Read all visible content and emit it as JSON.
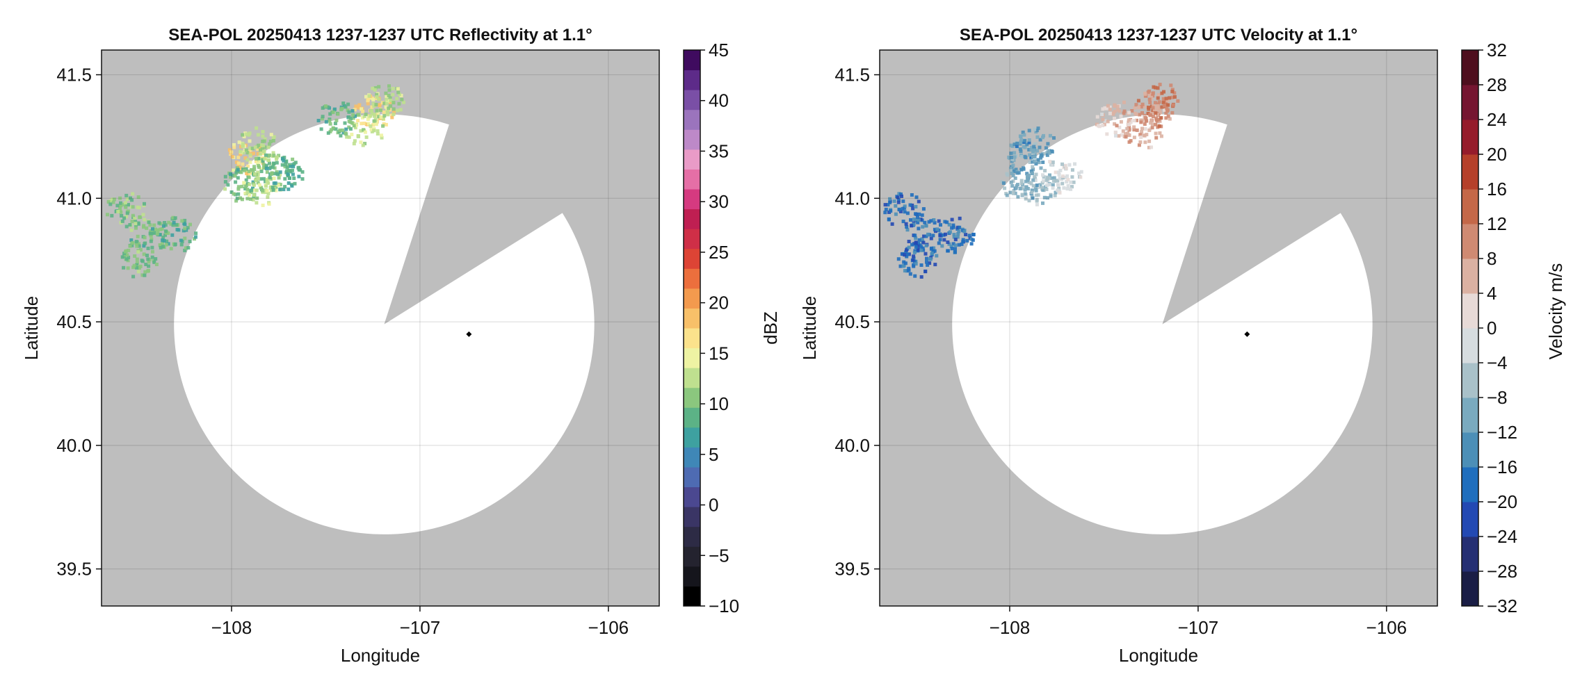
{
  "chart_data": [
    {
      "type": "radar-ppi",
      "title": "SEA-POL 20250413 1237-1237 UTC Reflectivity at 1.1°",
      "xlabel": "Longitude",
      "ylabel": "Latitude",
      "xlim": [
        -108.69,
        -105.73
      ],
      "ylim": [
        39.35,
        41.6
      ],
      "xticks": [
        -108,
        -107,
        -106
      ],
      "xtick_labels": [
        "−108",
        "−107",
        "−106"
      ],
      "yticks": [
        39.5,
        40.0,
        40.5,
        41.0,
        41.5
      ],
      "ytick_labels": [
        "39.5",
        "40.0",
        "40.5",
        "41.0",
        "41.5"
      ],
      "grid": true,
      "background_color": "#bebebe",
      "radar_site": {
        "lon": -107.19,
        "lat": 40.49
      },
      "range_ring_radius_deg_lat": 0.85,
      "beam_blockage_sector_deg": {
        "from_az": 18,
        "to_az": 58
      },
      "marker": {
        "lon": -106.74,
        "lat": 40.45
      },
      "colorbar": {
        "label": "dBZ",
        "min": -10,
        "max": 45,
        "step": 2.5,
        "tick_values": [
          -10,
          -5,
          0,
          5,
          10,
          15,
          20,
          25,
          30,
          35,
          40,
          45
        ],
        "tick_labels": [
          "−10",
          "−5",
          "0",
          "5",
          "10",
          "15",
          "20",
          "25",
          "30",
          "35",
          "40",
          "45"
        ],
        "colors": [
          "#000000",
          "#15151c",
          "#24232f",
          "#2d2b45",
          "#3a3565",
          "#4b4890",
          "#4e6bb2",
          "#3f87b7",
          "#3ea1a0",
          "#5cb286",
          "#8bc77e",
          "#bfe08f",
          "#eef3a3",
          "#fbe28c",
          "#f8c069",
          "#f39a4e",
          "#ec6f3d",
          "#dd4435",
          "#cf2f47",
          "#bf1f52",
          "#d53a80",
          "#e56fa6",
          "#e99bc7",
          "#bd89c8",
          "#9b74bd",
          "#7a4fa6",
          "#5d2b89",
          "#3f0b5f"
        ]
      },
      "echo_cells": [
        {
          "lon": -107.93,
          "lat": 41.17,
          "dbz": 24
        },
        {
          "lon": -107.87,
          "lat": 41.22,
          "dbz": 18
        },
        {
          "lon": -107.8,
          "lat": 41.12,
          "dbz": 16
        },
        {
          "lon": -107.95,
          "lat": 41.06,
          "dbz": 15
        },
        {
          "lon": -107.85,
          "lat": 41.05,
          "dbz": 19
        },
        {
          "lon": -107.73,
          "lat": 41.1,
          "dbz": 13
        },
        {
          "lon": -107.25,
          "lat": 41.36,
          "dbz": 24
        },
        {
          "lon": -107.3,
          "lat": 41.28,
          "dbz": 19
        },
        {
          "lon": -107.2,
          "lat": 41.4,
          "dbz": 18
        },
        {
          "lon": -107.45,
          "lat": 41.33,
          "dbz": 14
        },
        {
          "lon": -108.45,
          "lat": 40.85,
          "dbz": 15
        },
        {
          "lon": -108.3,
          "lat": 40.86,
          "dbz": 14
        },
        {
          "lon": -108.57,
          "lat": 40.96,
          "dbz": 16
        },
        {
          "lon": -108.5,
          "lat": 40.76,
          "dbz": 15
        }
      ]
    },
    {
      "type": "radar-ppi",
      "title": "SEA-POL 20250413 1237-1237 UTC Velocity at 1.1°",
      "xlabel": "Longitude",
      "ylabel": "Latitude",
      "xlim": [
        -108.69,
        -105.73
      ],
      "ylim": [
        39.35,
        41.6
      ],
      "xticks": [
        -108,
        -107,
        -106
      ],
      "xtick_labels": [
        "−108",
        "−107",
        "−106"
      ],
      "yticks": [
        39.5,
        40.0,
        40.5,
        41.0,
        41.5
      ],
      "ytick_labels": [
        "39.5",
        "40.0",
        "40.5",
        "41.0",
        "41.5"
      ],
      "grid": true,
      "background_color": "#bebebe",
      "radar_site": {
        "lon": -107.19,
        "lat": 40.49
      },
      "range_ring_radius_deg_lat": 0.85,
      "beam_blockage_sector_deg": {
        "from_az": 18,
        "to_az": 58
      },
      "marker": {
        "lon": -106.74,
        "lat": 40.45
      },
      "colorbar": {
        "label": "Velocity m/s",
        "min": -32,
        "max": 32,
        "step": 4,
        "tick_values": [
          -32,
          -28,
          -24,
          -20,
          -16,
          -12,
          -8,
          -4,
          0,
          4,
          8,
          12,
          16,
          20,
          24,
          28,
          32
        ],
        "tick_labels": [
          "−32",
          "−28",
          "−24",
          "−20",
          "−16",
          "−12",
          "−8",
          "−4",
          "0",
          "4",
          "8",
          "12",
          "16",
          "20",
          "24",
          "28",
          "32"
        ],
        "colors": [
          "#1a1d45",
          "#252f73",
          "#2349b3",
          "#1f6ebd",
          "#4c8fb7",
          "#7aaabf",
          "#a9c1c9",
          "#d6dcdf",
          "#e7dad7",
          "#dbb1a2",
          "#cf8a72",
          "#c46848",
          "#b5402a",
          "#951c2b",
          "#751631",
          "#4e0f1e"
        ]
      },
      "echo_cells": [
        {
          "lon": -107.93,
          "lat": 41.17,
          "v": -11
        },
        {
          "lon": -107.87,
          "lat": 41.22,
          "v": -12
        },
        {
          "lon": -107.85,
          "lat": 41.05,
          "v": -7
        },
        {
          "lon": -107.73,
          "lat": 41.1,
          "v": -3
        },
        {
          "lon": -107.95,
          "lat": 41.06,
          "v": -10
        },
        {
          "lon": -107.25,
          "lat": 41.36,
          "v": 8
        },
        {
          "lon": -107.3,
          "lat": 41.28,
          "v": 7
        },
        {
          "lon": -107.2,
          "lat": 41.4,
          "v": 11
        },
        {
          "lon": -107.45,
          "lat": 41.33,
          "v": 4
        },
        {
          "lon": -108.45,
          "lat": 40.86,
          "v": -18
        },
        {
          "lon": -108.3,
          "lat": 40.86,
          "v": -17
        },
        {
          "lon": -108.57,
          "lat": 40.96,
          "v": -19
        },
        {
          "lon": -108.5,
          "lat": 40.76,
          "v": -18
        }
      ]
    }
  ]
}
